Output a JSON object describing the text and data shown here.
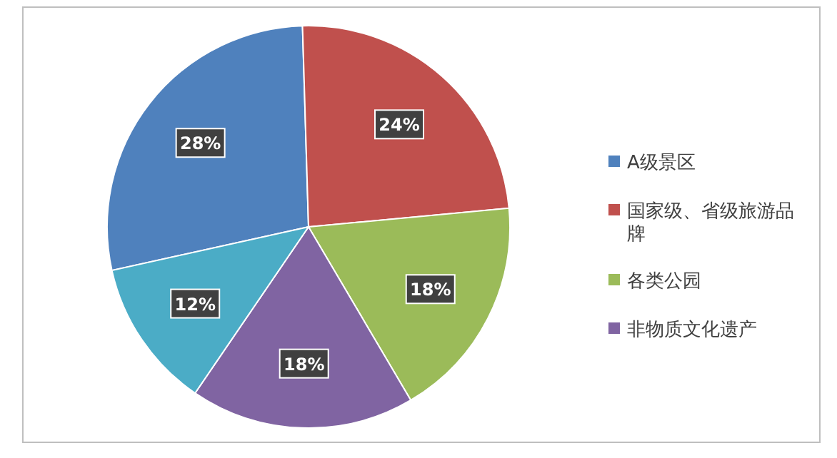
{
  "chart_data": {
    "type": "pie",
    "categories": [
      "A级景区",
      "国家级、省级旅游品牌",
      "各类公园",
      "非物质文化遗产",
      null
    ],
    "values": [
      28,
      24,
      18,
      18,
      12
    ],
    "colors": [
      "#4f81bd",
      "#c0504d",
      "#9bbb59",
      "#8064a2",
      "#4bacc6"
    ],
    "value_labels": [
      "28%",
      "24%",
      "18%",
      "18%",
      "12%"
    ],
    "legend": "right"
  }
}
